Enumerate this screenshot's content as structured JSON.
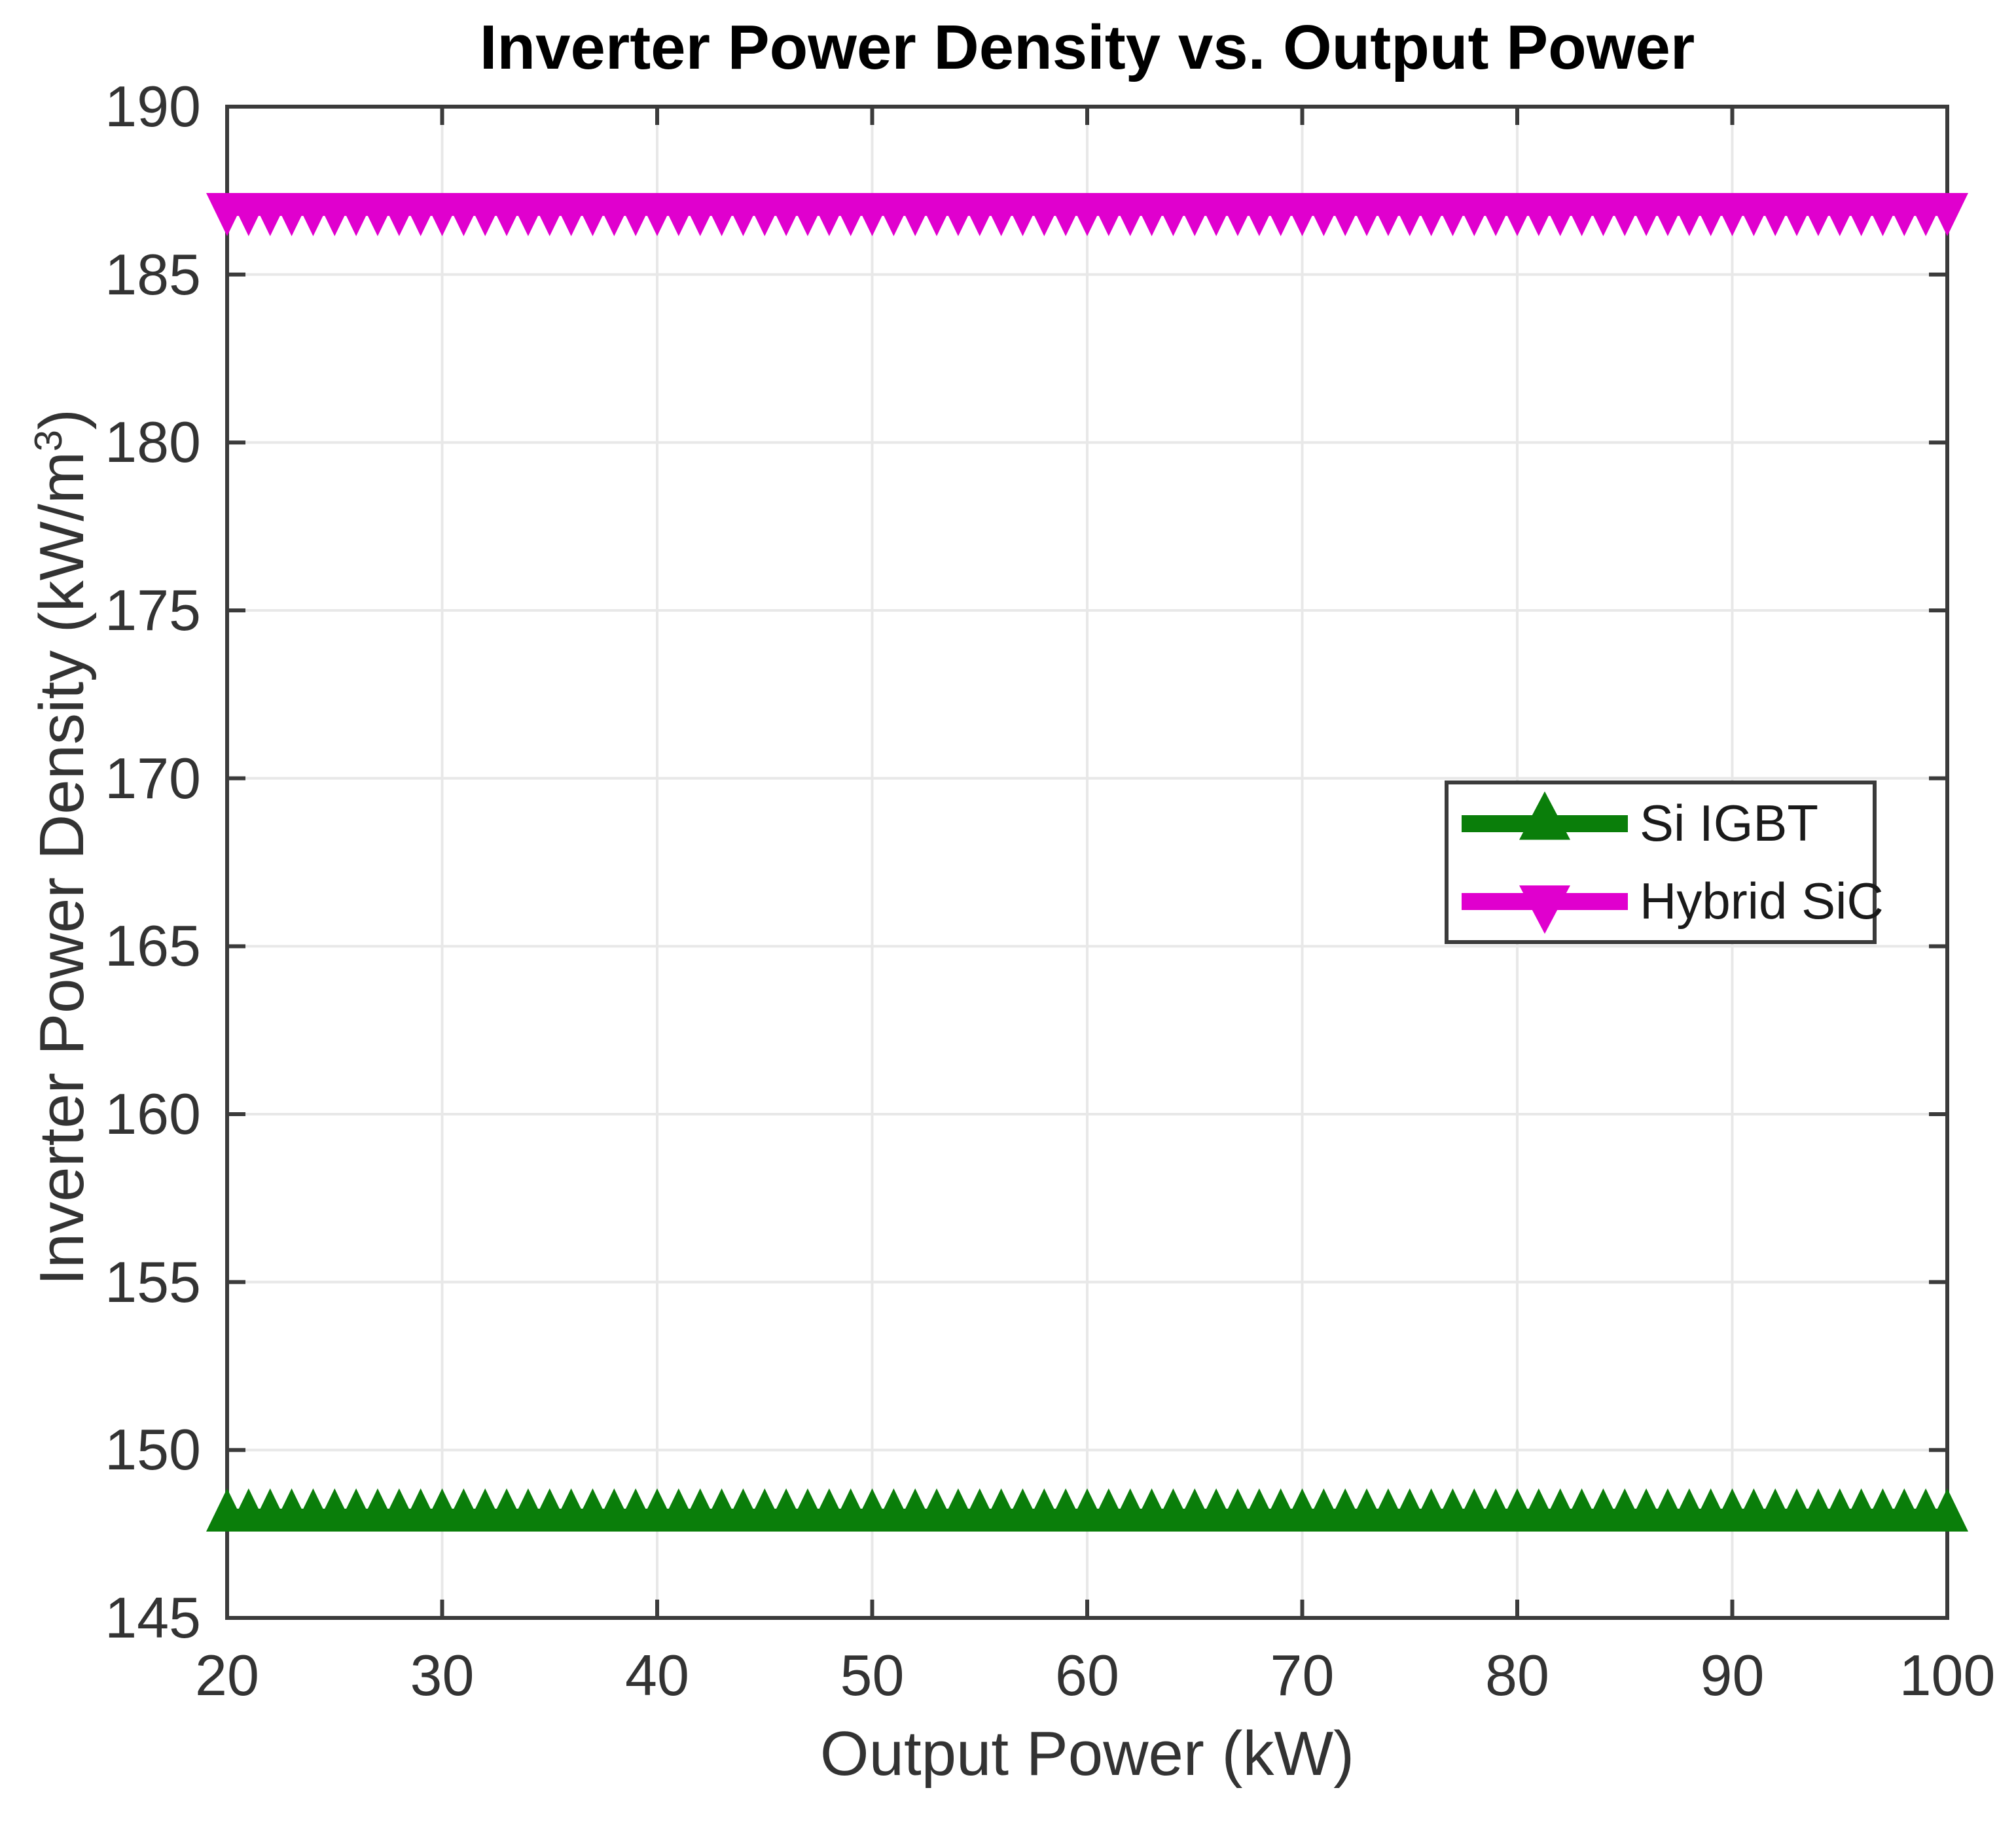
{
  "figure": {
    "background": "#ffffff",
    "axis_color": "#3b3b3b",
    "grid_color": "#e8e8e8",
    "tick_label_color": "#333333",
    "title_color": "#000000",
    "legend_border_color": "#3b3b3b"
  },
  "chart_data": {
    "type": "line",
    "title": "Inverter Power Density vs. Output Power",
    "xlabel": "Output Power (kW)",
    "ylabel": "Inverter Power Density (kW/m^3)",
    "ylabel_parts": {
      "main": "Inverter Power Density (kW/m",
      "sup": "3",
      "close": ")"
    },
    "xlim": [
      20,
      100
    ],
    "ylim": [
      145,
      190
    ],
    "xticks": [
      20,
      30,
      40,
      50,
      60,
      70,
      80,
      90,
      100
    ],
    "yticks": [
      145,
      150,
      155,
      160,
      165,
      170,
      175,
      180,
      185,
      190
    ],
    "grid": true,
    "x_tick_labels": [
      "20",
      "30",
      "40",
      "50",
      "60",
      "70",
      "80",
      "90",
      "100"
    ],
    "y_tick_labels": [
      "145",
      "150",
      "155",
      "160",
      "165",
      "170",
      "175",
      "180",
      "185",
      "190"
    ],
    "series": [
      {
        "name": "Si IGBT",
        "color": "#0a7e0a",
        "marker": "triangle-up",
        "x_start": 20,
        "x_end": 100,
        "n_points": 81,
        "value": 148
      },
      {
        "name": "Hybrid SiC",
        "color": "#e000ce",
        "marker": "triangle-down",
        "x_start": 20,
        "x_end": 100,
        "n_points": 81,
        "value": 187
      }
    ],
    "legend": {
      "position": "middle-right",
      "entries": [
        "Si IGBT",
        "Hybrid SiC"
      ]
    }
  }
}
